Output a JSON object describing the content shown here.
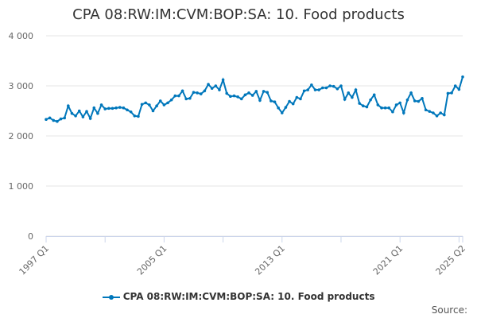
{
  "chart_data": {
    "type": "line",
    "title": "CPA 08:RW:IM:CVM:BOP:SA: 10. Food products",
    "x_start": "1997 Q1",
    "x_end": "2025 Q2",
    "x_tick_labels": [
      "1997 Q1",
      "2005 Q1",
      "2013 Q1",
      "2021 Q1",
      "2025 Q2"
    ],
    "y_ticks": [
      0,
      1000,
      2000,
      3000,
      4000
    ],
    "y_tick_labels": [
      "0",
      "1 000",
      "2 000",
      "3 000",
      "4 000"
    ],
    "ylim": [
      0,
      4000
    ],
    "grid": true,
    "legend_placement": "bottom",
    "color": "#0077bb",
    "series": [
      {
        "name": "CPA 08:RW:IM:CVM:BOP:SA: 10. Food products",
        "values": [
          2330,
          2360,
          2310,
          2290,
          2340,
          2360,
          2600,
          2450,
          2400,
          2500,
          2380,
          2490,
          2350,
          2560,
          2450,
          2620,
          2540,
          2550,
          2550,
          2560,
          2570,
          2560,
          2520,
          2480,
          2400,
          2390,
          2630,
          2660,
          2620,
          2500,
          2600,
          2700,
          2620,
          2660,
          2720,
          2800,
          2800,
          2900,
          2740,
          2750,
          2870,
          2860,
          2840,
          2900,
          3030,
          2950,
          3000,
          2920,
          3120,
          2850,
          2790,
          2800,
          2780,
          2740,
          2820,
          2860,
          2810,
          2890,
          2710,
          2890,
          2870,
          2700,
          2680,
          2560,
          2460,
          2570,
          2690,
          2640,
          2770,
          2740,
          2900,
          2920,
          3020,
          2920,
          2920,
          2960,
          2960,
          3000,
          2990,
          2940,
          3000,
          2730,
          2860,
          2770,
          2920,
          2650,
          2600,
          2580,
          2720,
          2820,
          2620,
          2560,
          2560,
          2560,
          2480,
          2620,
          2660,
          2460,
          2720,
          2860,
          2700,
          2690,
          2750,
          2520,
          2490,
          2460,
          2400,
          2460,
          2420,
          2850,
          2860,
          3000,
          2930,
          3180
        ]
      }
    ]
  },
  "source_label": "Source:"
}
